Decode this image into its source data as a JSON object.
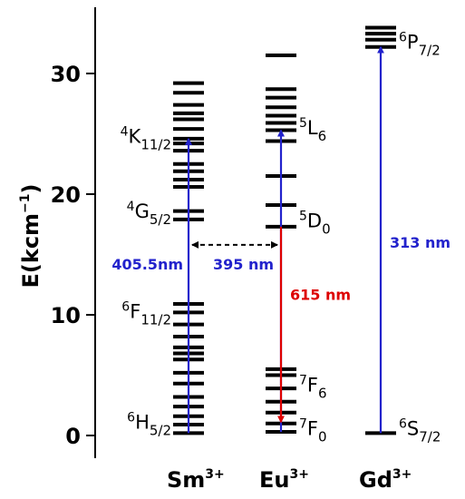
{
  "y_axis": {
    "title": "E(kcm",
    "title_sup": "−1",
    "title_close": ")",
    "range": [
      -2,
      35
    ],
    "ticks": [
      {
        "value": 0,
        "label": "0"
      },
      {
        "value": 10,
        "label": "10"
      },
      {
        "value": 20,
        "label": "20"
      },
      {
        "value": 30,
        "label": "30"
      }
    ]
  },
  "ions": [
    {
      "key": "sm",
      "base": "Sm",
      "sup": "3+",
      "levels": [
        0.2,
        0.9,
        1.6,
        2.4,
        3.2,
        4.3,
        5.2,
        6.3,
        6.8,
        7.3,
        8.2,
        9.2,
        10.2,
        10.9,
        17.9,
        18.6,
        20.6,
        21.2,
        21.9,
        22.5,
        23.6,
        24.2,
        24.6,
        25.4,
        26.2,
        26.7,
        27.4,
        28.4,
        29.2
      ]
    },
    {
      "key": "eu",
      "base": "Eu",
      "sup": "3+",
      "levels": [
        0.3,
        1.0,
        1.9,
        2.8,
        3.9,
        5.0,
        5.5,
        17.3,
        19.1,
        21.5,
        24.4,
        25.3,
        25.9,
        26.5,
        27.2,
        28.0,
        28.7,
        31.5
      ]
    },
    {
      "key": "gd",
      "base": "Gd",
      "sup": "3+",
      "levels": [
        0.2,
        32.2,
        32.8,
        33.3,
        33.8
      ]
    }
  ],
  "state_labels": [
    {
      "key": "sm-4k",
      "ion": "sm",
      "energy": 24.4,
      "base": "K",
      "sup": "4",
      "sub": "11/2",
      "side": "left"
    },
    {
      "key": "sm-4g",
      "ion": "sm",
      "energy": 18.2,
      "base": "G",
      "sup": "4",
      "sub": "5/2",
      "side": "left"
    },
    {
      "key": "sm-6f",
      "ion": "sm",
      "energy": 9.9,
      "base": "F",
      "sup": "6",
      "sub": "11/2",
      "side": "left"
    },
    {
      "key": "sm-6h",
      "ion": "sm",
      "energy": 0.7,
      "base": "H",
      "sup": "6",
      "sub": "5/2",
      "side": "left"
    },
    {
      "key": "eu-5l",
      "ion": "eu",
      "energy": 25.1,
      "base": "L",
      "sup": "5",
      "sub": "6",
      "side": "right"
    },
    {
      "key": "eu-5d",
      "ion": "eu",
      "energy": 17.4,
      "base": "D",
      "sup": "5",
      "sub": "0",
      "side": "right"
    },
    {
      "key": "eu-7f6",
      "ion": "eu",
      "energy": 3.8,
      "base": "F",
      "sup": "7",
      "sub": "6",
      "side": "right"
    },
    {
      "key": "eu-7f0",
      "ion": "eu",
      "energy": 0.2,
      "base": "F",
      "sup": "7",
      "sub": "0",
      "side": "right"
    },
    {
      "key": "gd-6p",
      "ion": "gd",
      "energy": 32.2,
      "base": "P",
      "sup": "6",
      "sub": "7/2",
      "side": "right"
    },
    {
      "key": "gd-6s",
      "ion": "gd",
      "energy": 0.2,
      "base": "S",
      "sup": "6",
      "sub": "7/2",
      "side": "right"
    }
  ],
  "transitions": [
    {
      "key": "sm-excitation",
      "ion": "sm",
      "from": 0.2,
      "to": 24.6,
      "color": "#2222cc",
      "label": "405.5nm",
      "label_energy": 14.2
    },
    {
      "key": "eu-excitation",
      "ion": "eu",
      "from": 0.3,
      "to": 25.3,
      "color": "#2222cc",
      "label": "395 nm",
      "label_energy": 14.2
    },
    {
      "key": "eu-emission",
      "ion": "eu",
      "from": 17.3,
      "to": 1.1,
      "color": "#dd0000",
      "label": "615 nm",
      "label_energy": 11.7
    },
    {
      "key": "gd-excitation",
      "ion": "gd",
      "from": 0.2,
      "to": 32.2,
      "color": "#2222cc",
      "label": "313 nm",
      "label_energy": 16.0
    }
  ],
  "transfer": {
    "from_ion": "sm",
    "to_ion": "eu",
    "energy": 15.8
  }
}
